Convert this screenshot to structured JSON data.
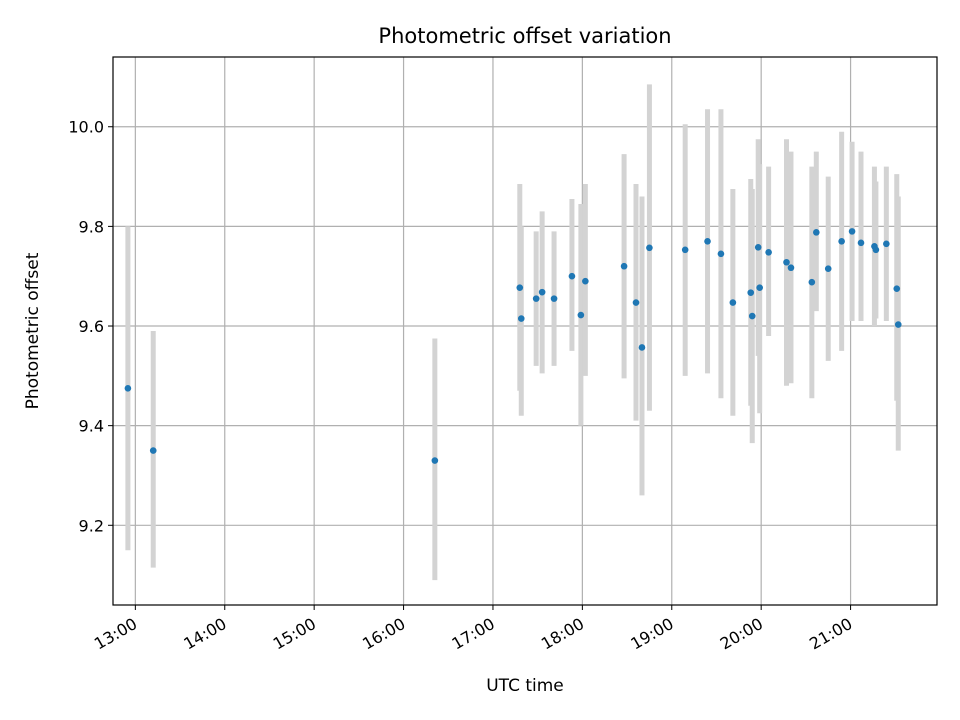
{
  "chart_data": {
    "type": "scatter",
    "title": "Photometric offset variation",
    "xlabel": "UTC time",
    "ylabel": "Photometric offset",
    "x_axis_kind": "time",
    "xlim": [
      "12:45",
      "21:58"
    ],
    "ylim": [
      9.04,
      10.14
    ],
    "x_ticks": [
      "13:00",
      "14:00",
      "15:00",
      "16:00",
      "17:00",
      "18:00",
      "19:00",
      "20:00",
      "21:00"
    ],
    "y_ticks": [
      9.2,
      9.4,
      9.6,
      9.8,
      10.0
    ],
    "y_tick_labels": [
      "9.2",
      "9.4",
      "9.6",
      "9.8",
      "10.0"
    ],
    "grid": true,
    "legend": "none",
    "colors": {
      "point": "#1f77b4",
      "errorbar": "#d3d3d3",
      "grid": "#b0b0b0"
    },
    "points": [
      {
        "t": "12:55",
        "y": 9.475,
        "lo": 9.15,
        "hi": 9.8
      },
      {
        "t": "13:12",
        "y": 9.35,
        "lo": 9.115,
        "hi": 9.59
      },
      {
        "t": "16:21",
        "y": 9.33,
        "lo": 9.09,
        "hi": 9.575
      },
      {
        "t": "17:18",
        "y": 9.677,
        "lo": 9.47,
        "hi": 9.885
      },
      {
        "t": "17:19",
        "y": 9.615,
        "lo": 9.42,
        "hi": 9.8
      },
      {
        "t": "17:29",
        "y": 9.655,
        "lo": 9.52,
        "hi": 9.79
      },
      {
        "t": "17:33",
        "y": 9.668,
        "lo": 9.505,
        "hi": 9.83
      },
      {
        "t": "17:41",
        "y": 9.655,
        "lo": 9.52,
        "hi": 9.79
      },
      {
        "t": "17:53",
        "y": 9.7,
        "lo": 9.55,
        "hi": 9.855
      },
      {
        "t": "17:59",
        "y": 9.622,
        "lo": 9.4,
        "hi": 9.845
      },
      {
        "t": "18:02",
        "y": 9.69,
        "lo": 9.5,
        "hi": 9.885
      },
      {
        "t": "18:28",
        "y": 9.72,
        "lo": 9.495,
        "hi": 9.945
      },
      {
        "t": "18:36",
        "y": 9.647,
        "lo": 9.41,
        "hi": 9.885
      },
      {
        "t": "18:40",
        "y": 9.557,
        "lo": 9.26,
        "hi": 9.86
      },
      {
        "t": "18:45",
        "y": 9.757,
        "lo": 9.43,
        "hi": 10.085
      },
      {
        "t": "19:09",
        "y": 9.753,
        "lo": 9.5,
        "hi": 10.005
      },
      {
        "t": "19:24",
        "y": 9.77,
        "lo": 9.505,
        "hi": 10.035
      },
      {
        "t": "19:33",
        "y": 9.745,
        "lo": 9.455,
        "hi": 10.035
      },
      {
        "t": "19:41",
        "y": 9.647,
        "lo": 9.42,
        "hi": 9.875
      },
      {
        "t": "19:53",
        "y": 9.667,
        "lo": 9.44,
        "hi": 9.895
      },
      {
        "t": "19:54",
        "y": 9.62,
        "lo": 9.365,
        "hi": 9.875
      },
      {
        "t": "19:58",
        "y": 9.758,
        "lo": 9.54,
        "hi": 9.975
      },
      {
        "t": "19:59",
        "y": 9.677,
        "lo": 9.425,
        "hi": 9.925
      },
      {
        "t": "20:05",
        "y": 9.748,
        "lo": 9.58,
        "hi": 9.92
      },
      {
        "t": "20:17",
        "y": 9.728,
        "lo": 9.48,
        "hi": 9.975
      },
      {
        "t": "20:20",
        "y": 9.717,
        "lo": 9.485,
        "hi": 9.95
      },
      {
        "t": "20:34",
        "y": 9.688,
        "lo": 9.455,
        "hi": 9.92
      },
      {
        "t": "20:37",
        "y": 9.788,
        "lo": 9.63,
        "hi": 9.95
      },
      {
        "t": "20:45",
        "y": 9.715,
        "lo": 9.53,
        "hi": 9.9
      },
      {
        "t": "20:54",
        "y": 9.77,
        "lo": 9.55,
        "hi": 9.99
      },
      {
        "t": "21:01",
        "y": 9.79,
        "lo": 9.61,
        "hi": 9.97
      },
      {
        "t": "21:07",
        "y": 9.767,
        "lo": 9.61,
        "hi": 9.95
      },
      {
        "t": "21:16",
        "y": 9.76,
        "lo": 9.6,
        "hi": 9.92
      },
      {
        "t": "21:17",
        "y": 9.753,
        "lo": 9.615,
        "hi": 9.89
      },
      {
        "t": "21:24",
        "y": 9.765,
        "lo": 9.61,
        "hi": 9.92
      },
      {
        "t": "21:31",
        "y": 9.675,
        "lo": 9.45,
        "hi": 9.905
      },
      {
        "t": "21:32",
        "y": 9.603,
        "lo": 9.35,
        "hi": 9.86
      }
    ]
  }
}
